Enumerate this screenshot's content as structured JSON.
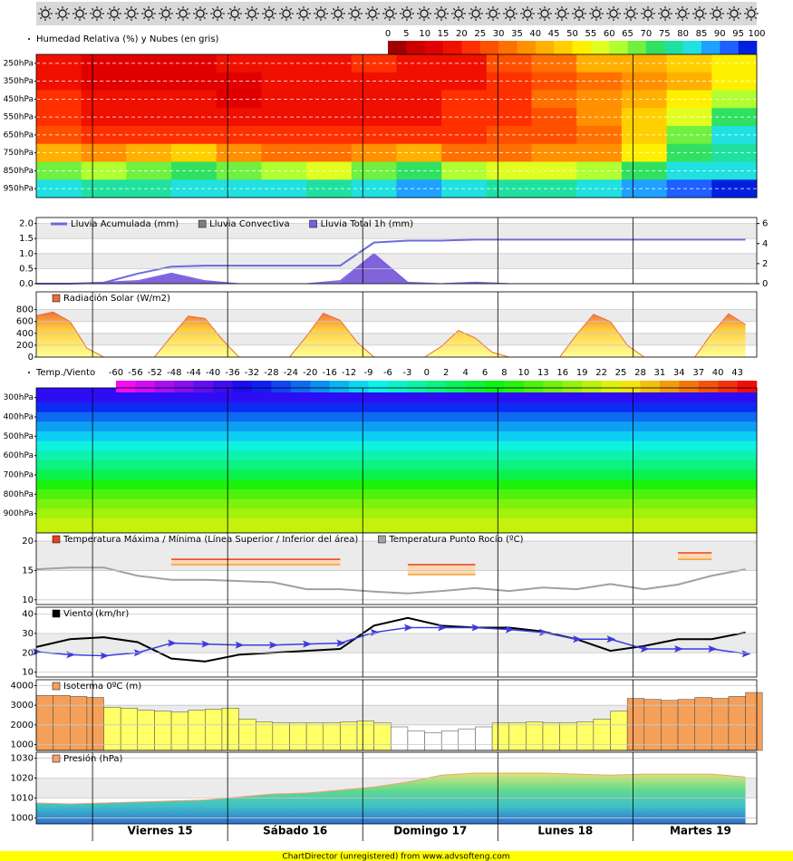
{
  "x_axis": {
    "xlim": [
      0,
      128
    ],
    "xticks": [
      {
        "value": 22,
        "label": "Viernes 15"
      },
      {
        "value": 46,
        "label": "Sábado 16"
      },
      {
        "value": 70,
        "label": "Domingo 17"
      },
      {
        "value": 94,
        "label": "Lunes 18"
      },
      {
        "value": 118,
        "label": "Martes 19"
      }
    ],
    "day_lines": [
      10,
      34,
      58,
      82,
      106
    ]
  },
  "footer": "ChartDirector (unregistered) from www.advsofteng.com",
  "chart_data": [
    {
      "type": "heatmap",
      "title": "Humedad Relativa (%) y Nubes (en gris)",
      "inverted": true,
      "grid": true,
      "ylim": [
        200,
        1000
      ],
      "yticks": [
        {
          "value": 250,
          "label": "250hPa"
        },
        {
          "value": 350,
          "label": "350hPa"
        },
        {
          "value": 450,
          "label": "450hPa"
        },
        {
          "value": 550,
          "label": "550hPa"
        },
        {
          "value": 650,
          "label": "650hPa"
        },
        {
          "value": 750,
          "label": "750hPa"
        },
        {
          "value": 850,
          "label": "850hPa"
        },
        {
          "value": 950,
          "label": "950hPa"
        }
      ],
      "levels": [
        250,
        350,
        450,
        550,
        650,
        750,
        850,
        950
      ],
      "x": [
        0,
        8,
        16,
        24,
        32,
        40,
        48,
        56,
        64,
        72,
        80,
        88,
        96,
        104,
        112,
        120
      ],
      "values": [
        [
          15,
          10,
          10,
          10,
          15,
          15,
          15,
          20,
          15,
          15,
          25,
          30,
          40,
          40,
          45,
          50
        ],
        [
          15,
          10,
          10,
          10,
          10,
          15,
          15,
          15,
          15,
          15,
          20,
          25,
          30,
          35,
          40,
          50
        ],
        [
          20,
          15,
          15,
          15,
          10,
          15,
          15,
          15,
          15,
          20,
          20,
          30,
          35,
          40,
          50,
          60
        ],
        [
          20,
          15,
          15,
          15,
          15,
          15,
          15,
          15,
          15,
          20,
          20,
          25,
          35,
          45,
          55,
          70
        ],
        [
          25,
          20,
          20,
          20,
          20,
          20,
          20,
          20,
          20,
          20,
          25,
          25,
          30,
          45,
          65,
          80
        ],
        [
          40,
          35,
          40,
          45,
          35,
          30,
          30,
          35,
          40,
          30,
          30,
          35,
          35,
          50,
          70,
          75
        ],
        [
          65,
          60,
          65,
          70,
          65,
          60,
          55,
          65,
          70,
          60,
          55,
          55,
          60,
          70,
          80,
          80
        ],
        [
          80,
          75,
          75,
          80,
          80,
          80,
          75,
          80,
          85,
          80,
          75,
          75,
          80,
          85,
          90,
          95
        ]
      ],
      "color_scale": {
        "ticks": [
          0,
          5,
          10,
          15,
          20,
          25,
          30,
          35,
          40,
          45,
          50,
          55,
          60,
          65,
          70,
          75,
          80,
          85,
          90,
          95,
          100
        ],
        "colors": [
          "#a00000",
          "#c80000",
          "#e00000",
          "#f01000",
          "#ff3000",
          "#ff5000",
          "#ff7000",
          "#ff9000",
          "#ffb000",
          "#ffd000",
          "#fff000",
          "#e0ff20",
          "#b0ff30",
          "#70f040",
          "#30e060",
          "#20e0a0",
          "#20e0e0",
          "#20a0ff",
          "#2060ff",
          "#0020e0"
        ]
      }
    },
    {
      "type": "area",
      "grid": true,
      "ylim": [
        0,
        2.2
      ],
      "yticks": [
        {
          "value": 0,
          "label": "0.0"
        },
        0.5,
        {
          "value": 1,
          "label": "1.0"
        },
        1.5,
        {
          "value": 2,
          "label": "2.0"
        }
      ],
      "y2lim": [
        0,
        6.6
      ],
      "y2ticks": [
        0,
        2,
        4,
        6
      ],
      "x": [
        0,
        6,
        12,
        18,
        24,
        30,
        36,
        42,
        48,
        54,
        60,
        66,
        72,
        78,
        84,
        90,
        96,
        102,
        108,
        114,
        120,
        126
      ],
      "series": [
        {
          "name": "Lluvia Acumulada (mm)",
          "color": "#6b6bdc",
          "kind": "line",
          "axis": "y2",
          "values": [
            0,
            0,
            0.1,
            1.0,
            1.7,
            1.8,
            1.8,
            1.8,
            1.8,
            1.8,
            4.1,
            4.3,
            4.3,
            4.4,
            4.4,
            4.4,
            4.4,
            4.4,
            4.4,
            4.4,
            4.4,
            4.4
          ]
        },
        {
          "name": "Lluvia Convectiva",
          "color": "#808080",
          "kind": "area",
          "values": [
            0,
            0,
            0,
            0.05,
            0.3,
            0.05,
            0,
            0,
            0,
            0,
            1.0,
            0,
            0,
            0.05,
            0,
            0,
            0,
            0,
            0,
            0,
            0,
            0
          ]
        },
        {
          "name": "Lluvia Total 1h (mm)",
          "color": "#7b5ce6",
          "kind": "area",
          "values": [
            0,
            0,
            0.05,
            0.1,
            0.35,
            0.1,
            0,
            0,
            0,
            0.1,
            1.0,
            0.05,
            0,
            0.05,
            0,
            0,
            0,
            0,
            0,
            0,
            0,
            0
          ]
        }
      ]
    },
    {
      "type": "area",
      "grid": true,
      "ylim": [
        0,
        1100
      ],
      "yticks": [
        0,
        200,
        400,
        600,
        800
      ],
      "x": [
        0,
        3,
        6,
        9,
        12,
        15,
        18,
        21,
        24,
        27,
        30,
        33,
        36,
        39,
        42,
        45,
        48,
        51,
        54,
        57,
        60,
        63,
        66,
        69,
        72,
        75,
        78,
        81,
        84,
        87,
        90,
        93,
        96,
        99,
        102,
        105,
        108,
        111,
        114,
        117,
        120,
        123,
        126
      ],
      "series": [
        {
          "name": "Radiación Solar (W/m2)",
          "color": "#e86a3a",
          "kind": "area",
          "values": [
            700,
            760,
            600,
            150,
            0,
            0,
            0,
            0,
            350,
            690,
            650,
            300,
            0,
            0,
            0,
            0,
            350,
            740,
            620,
            250,
            0,
            0,
            0,
            0,
            180,
            450,
            320,
            80,
            0,
            0,
            0,
            0,
            380,
            720,
            600,
            200,
            0,
            0,
            0,
            0,
            400,
            730,
            550
          ]
        }
      ]
    },
    {
      "type": "heatmap",
      "title": "Temp./Viento",
      "inverted": true,
      "ylim": [
        250,
        1000
      ],
      "yticks": [
        {
          "value": 300,
          "label": "300hPa"
        },
        {
          "value": 400,
          "label": "400hPa"
        },
        {
          "value": 500,
          "label": "500hPa"
        },
        {
          "value": 600,
          "label": "600hPa"
        },
        {
          "value": 700,
          "label": "700hPa"
        },
        {
          "value": 800,
          "label": "800hPa"
        },
        {
          "value": 900,
          "label": "900hPa"
        }
      ],
      "levels": [
        300,
        350,
        400,
        450,
        500,
        550,
        600,
        650,
        700,
        750,
        800,
        850,
        900,
        950
      ],
      "x": [
        0
      ],
      "values": [
        [
          -38
        ],
        [
          -31
        ],
        [
          -24
        ],
        [
          -18
        ],
        [
          -13
        ],
        [
          -8
        ],
        [
          -4
        ],
        [
          0
        ],
        [
          3
        ],
        [
          7
        ],
        [
          10
        ],
        [
          14
        ],
        [
          17
        ],
        [
          20
        ]
      ],
      "color_scale": {
        "ticks": [
          -60,
          -56,
          -52,
          -48,
          -44,
          -40,
          -36,
          -32,
          -28,
          -24,
          -20,
          -16,
          -12,
          -9,
          -6,
          -3,
          0,
          2,
          4,
          6,
          8,
          10,
          13,
          16,
          19,
          22,
          25,
          28,
          31,
          34,
          37,
          40,
          43
        ]
      }
    },
    {
      "type": "line",
      "grid": true,
      "ylim": [
        9.2,
        21.4
      ],
      "yticks": [
        10,
        15,
        20
      ],
      "x": [
        0,
        6,
        12,
        18,
        24,
        30,
        36,
        42,
        48,
        54,
        60,
        66,
        72,
        78,
        84,
        90,
        96,
        102,
        108,
        114,
        120,
        126
      ],
      "series": [
        {
          "name": "Temperatura Máxima / Mínima (Línea Superior / Inferior del área)",
          "color": "#e8401c",
          "kind": "range",
          "values": [
            null,
            null,
            null,
            null,
            16.9,
            16.9,
            16.9,
            16.9,
            16.9,
            16.9,
            null,
            16,
            16,
            16,
            null,
            null,
            null,
            null,
            null,
            18,
            18,
            null
          ],
          "low": [
            null,
            null,
            null,
            null,
            16,
            16,
            16,
            16,
            16,
            16,
            null,
            14.3,
            14.3,
            14.3,
            null,
            null,
            null,
            null,
            null,
            16.9,
            16.9,
            null
          ]
        },
        {
          "name": "Temperatura Punto Rocío (ºC)",
          "color": "#a0a0a0",
          "kind": "line",
          "values": [
            15.2,
            15.5,
            15.5,
            14.1,
            13.4,
            13.4,
            13.2,
            13,
            11.8,
            11.8,
            11.4,
            11.1,
            11.5,
            12,
            11.5,
            12.1,
            11.8,
            12.7,
            11.8,
            12.6,
            14.1,
            15.2
          ]
        }
      ]
    },
    {
      "type": "line",
      "grid": true,
      "ylim": [
        7.5,
        43.5
      ],
      "yticks": [
        10,
        20,
        30,
        40
      ],
      "x": [
        0,
        6,
        12,
        18,
        24,
        30,
        36,
        42,
        48,
        54,
        60,
        66,
        72,
        78,
        84,
        90,
        96,
        102,
        108,
        114,
        120,
        126
      ],
      "series": [
        {
          "name": "Viento (km/hr)",
          "color": "#000000",
          "kind": "line",
          "values": [
            23,
            27,
            28,
            25.5,
            17,
            15.5,
            19,
            20,
            21,
            22,
            34,
            38,
            34,
            33,
            33,
            31,
            27,
            21,
            23.5,
            27,
            27,
            30.5
          ]
        }
      ],
      "arrows": {
        "color": "#3c3cdc",
        "values": [
          20.5,
          19,
          18.5,
          20,
          25,
          24.5,
          24,
          24,
          24.5,
          25,
          30.5,
          33,
          33,
          33,
          32,
          30.5,
          27,
          27,
          22,
          22,
          22,
          19.5
        ]
      }
    },
    {
      "type": "bar",
      "grid": true,
      "ylim": [
        700,
        4300
      ],
      "yticks": [
        1000,
        2000,
        3000,
        4000
      ],
      "x": [
        0,
        3,
        6,
        9,
        12,
        15,
        18,
        21,
        24,
        27,
        30,
        33,
        36,
        39,
        42,
        45,
        48,
        51,
        54,
        57,
        60,
        63,
        66,
        69,
        72,
        75,
        78,
        81,
        84,
        87,
        90,
        93,
        96,
        99,
        102,
        105,
        108,
        111,
        114,
        117,
        120,
        123,
        126
      ],
      "band_colors": [
        "#ffffff",
        "#ffff66",
        "#f4a05a"
      ],
      "series": [
        {
          "name": "Isoterma 0ºC (m)",
          "color": "#f4a05a",
          "kind": "bar",
          "values": [
            3500,
            3500,
            3450,
            3400,
            2900,
            2850,
            2750,
            2700,
            2650,
            2750,
            2800,
            2850,
            2300,
            2150,
            2100,
            2100,
            2100,
            2100,
            2150,
            2200,
            2100,
            1900,
            1700,
            1600,
            1700,
            1800,
            1900,
            2100,
            2100,
            2150,
            2100,
            2100,
            2150,
            2300,
            2700,
            3350,
            3300,
            3250,
            3300,
            3400,
            3350,
            3450,
            3650
          ]
        }
      ]
    },
    {
      "type": "area",
      "grid": true,
      "ylim": [
        997,
        1033
      ],
      "yticks": [
        1000,
        1010,
        1020,
        1030
      ],
      "x": [
        0,
        6,
        12,
        18,
        24,
        30,
        36,
        42,
        48,
        54,
        60,
        66,
        72,
        78,
        84,
        90,
        96,
        102,
        108,
        114,
        120,
        126
      ],
      "series": [
        {
          "name": "Presión (hPa)",
          "color": "#f4a070",
          "kind": "area",
          "values": [
            1007.5,
            1007,
            1007.5,
            1008,
            1008.5,
            1009,
            1010.5,
            1012,
            1012.5,
            1014,
            1015.5,
            1018,
            1021.5,
            1022.5,
            1022.5,
            1022.5,
            1022,
            1021.5,
            1022,
            1022,
            1022,
            1020.5
          ]
        }
      ]
    }
  ]
}
